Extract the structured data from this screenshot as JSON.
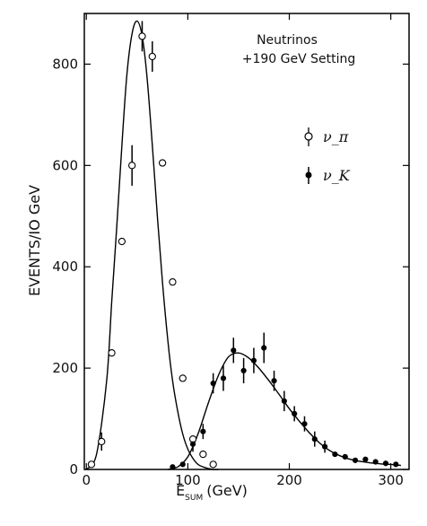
{
  "chart_data": {
    "type": "scatter",
    "xlabel": "E",
    "xlabel_sub": "SUM",
    "xlabel_unit": "(GeV)",
    "ylabel": "EVENTS/IO GeV",
    "xlim": [
      -2,
      318
    ],
    "ylim": [
      0,
      900
    ],
    "x_ticks": [
      0,
      100,
      200,
      300
    ],
    "y_ticks": [
      0,
      200,
      400,
      600,
      800
    ],
    "annotation": [
      "Neutrinos",
      "+190 GeV Setting"
    ],
    "legend_position": "right",
    "grid": false,
    "series": [
      {
        "name": "ν_π",
        "marker": "open-circle",
        "x": [
          5,
          15,
          25,
          35,
          45,
          55,
          65,
          75,
          85,
          95,
          105,
          115,
          125
        ],
        "y": [
          10,
          55,
          230,
          450,
          600,
          855,
          815,
          605,
          370,
          180,
          60,
          30,
          10
        ],
        "err": [
          0,
          18,
          0,
          0,
          40,
          30,
          30,
          0,
          0,
          0,
          0,
          0,
          0
        ]
      },
      {
        "name": "ν_K",
        "marker": "filled-circle",
        "x": [
          85,
          95,
          105,
          115,
          125,
          135,
          145,
          155,
          165,
          175,
          185,
          195,
          205,
          215,
          225,
          235,
          245,
          255,
          265,
          275,
          285,
          295,
          305
        ],
        "y": [
          5,
          10,
          50,
          75,
          170,
          180,
          235,
          195,
          215,
          240,
          175,
          135,
          110,
          90,
          60,
          45,
          30,
          25,
          18,
          20,
          15,
          12,
          10
        ],
        "err": [
          0,
          0,
          15,
          15,
          20,
          25,
          25,
          25,
          25,
          30,
          20,
          20,
          15,
          15,
          15,
          12,
          0,
          0,
          0,
          0,
          0,
          0,
          0
        ]
      }
    ],
    "fits": [
      {
        "name": "ν_π fit",
        "x": [
          0,
          10,
          20,
          25,
          30,
          35,
          40,
          45,
          50,
          55,
          60,
          65,
          70,
          75,
          80,
          85,
          90,
          95,
          100,
          105,
          110,
          115,
          120,
          125,
          130
        ],
        "y": [
          0,
          30,
          175,
          330,
          480,
          640,
          780,
          860,
          885,
          855,
          770,
          640,
          500,
          370,
          260,
          175,
          115,
          70,
          40,
          22,
          10,
          5,
          2,
          0,
          0
        ]
      },
      {
        "name": "ν_K fit",
        "x": [
          80,
          90,
          100,
          110,
          120,
          130,
          140,
          150,
          160,
          170,
          180,
          190,
          200,
          210,
          220,
          230,
          240,
          250,
          260,
          270,
          280,
          290,
          300,
          310
        ],
        "y": [
          0,
          5,
          25,
          70,
          130,
          185,
          222,
          230,
          220,
          200,
          175,
          148,
          120,
          95,
          72,
          52,
          37,
          27,
          20,
          16,
          13,
          11,
          10,
          8
        ]
      }
    ]
  }
}
